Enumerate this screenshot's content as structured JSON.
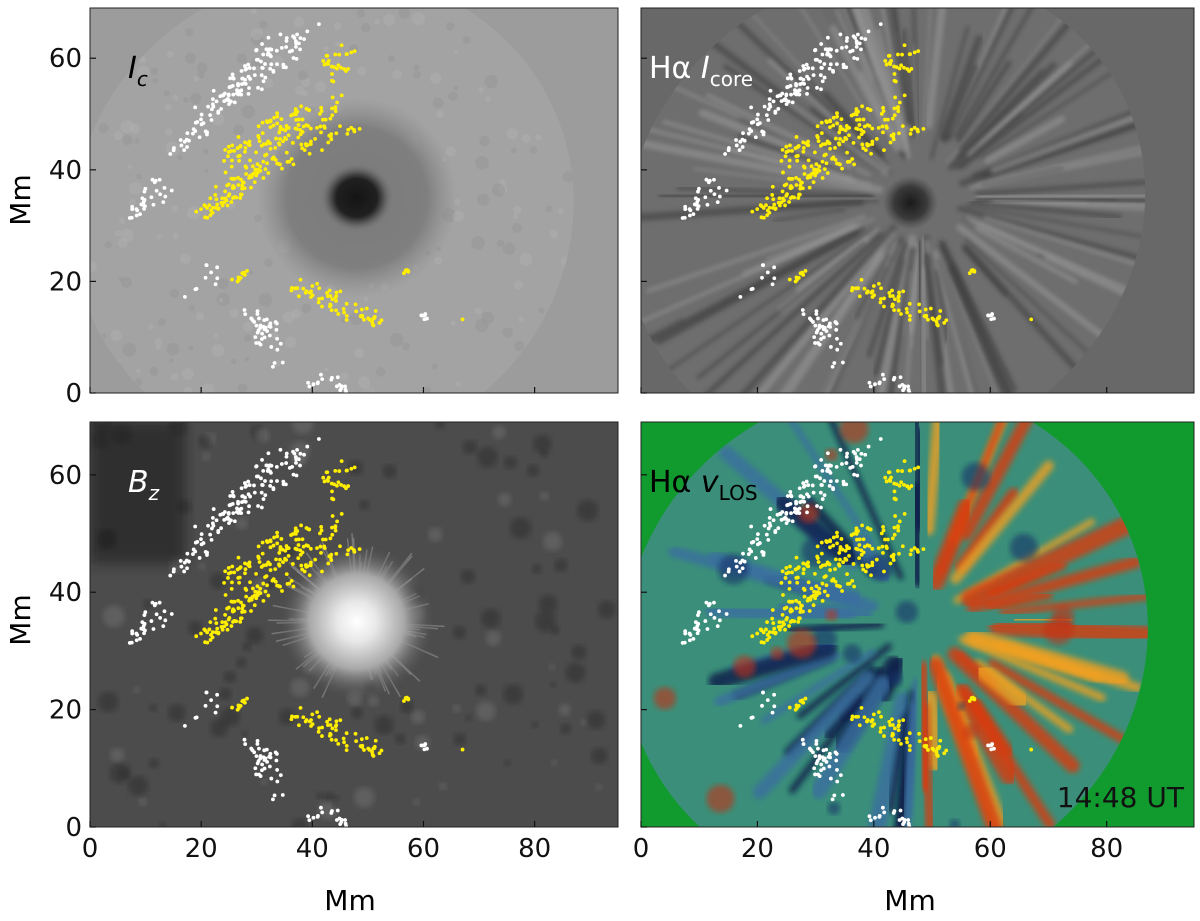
{
  "figure": {
    "panels": [
      {
        "id": "continuum",
        "label_main": "I",
        "label_sub": "c",
        "label_italic": true,
        "label_color": "#000000",
        "style": "continuum"
      },
      {
        "id": "halpha-core",
        "label_main": "Hα ",
        "label_var": "I",
        "label_sub": "core",
        "label_color": "#ffffff",
        "style": "halpha"
      },
      {
        "id": "bz",
        "label_main": "B",
        "label_sub": "z",
        "label_italic": true,
        "label_color": "#ffffff",
        "style": "bz"
      },
      {
        "id": "halpha-vlos",
        "label_main": "Hα ",
        "label_var": "v",
        "label_sub": "LOS",
        "label_color": "#000000",
        "style": "vlos",
        "timestamp": "14:48 UT"
      }
    ],
    "axes": {
      "x_label": "Mm",
      "y_label": "Mm",
      "x_ticks": [
        "0",
        "20",
        "40",
        "60",
        "80"
      ],
      "y_ticks": [
        "0",
        "20",
        "40",
        "60"
      ],
      "x_range": [
        0,
        95
      ],
      "y_range": [
        0,
        69
      ]
    },
    "colors": {
      "marker_white": "#ffffff",
      "marker_yellow": "#ffee00",
      "vlos_background": "#119a2d",
      "panel_background_continuum": "#9c9c9c",
      "panel_background_halpha": "#686868"
    }
  }
}
